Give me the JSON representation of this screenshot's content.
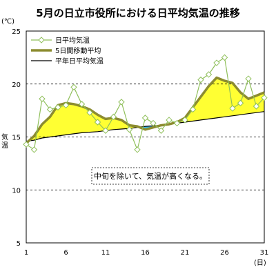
{
  "chart_data": {
    "type": "line",
    "title": "5月の日立市役所における日平均気温の推移",
    "y_unit": "(℃)",
    "ylabel": "気温",
    "x_unit": "(日)",
    "ylim": [
      5,
      25
    ],
    "yticks": [
      5,
      10,
      15,
      20,
      25
    ],
    "xlim": [
      1,
      31
    ],
    "xticks": [
      1,
      6,
      11,
      16,
      21,
      26,
      31
    ],
    "grid": "horizontal dashed at 10, 15, 20",
    "legend_position": "top-left",
    "x": [
      1,
      2,
      3,
      4,
      5,
      6,
      7,
      8,
      9,
      10,
      11,
      12,
      13,
      14,
      15,
      16,
      17,
      18,
      19,
      20,
      21,
      22,
      23,
      24,
      25,
      26,
      27,
      28,
      29,
      30,
      31
    ],
    "series": [
      {
        "name": "日平均気温",
        "style": "line-with-diamond-markers",
        "color": "#8fbf5a",
        "values": [
          14.3,
          13.8,
          18.6,
          17.6,
          17.8,
          18.0,
          19.7,
          18.1,
          17.3,
          16.4,
          15.6,
          16.9,
          18.3,
          15.7,
          13.8,
          16.8,
          16.3,
          15.6,
          16.6,
          16.3,
          16.6,
          17.6,
          20.4,
          20.9,
          22.0,
          22.5,
          17.7,
          18.2,
          20.5,
          17.9,
          18.7
        ]
      },
      {
        "name": "5日間移動平均",
        "style": "thick-line",
        "color": "#8c8c30",
        "values": [
          14.4,
          15.1,
          16.2,
          16.9,
          18.0,
          18.2,
          18.1,
          17.9,
          17.6,
          17.1,
          16.7,
          16.8,
          16.6,
          16.1,
          16.0,
          15.7,
          15.9,
          16.1,
          16.2,
          16.4,
          16.8,
          17.8,
          18.8,
          19.8,
          20.6,
          20.3,
          20.1,
          19.2,
          18.6,
          18.9,
          19.2
        ]
      },
      {
        "name": "平年日平均気温",
        "style": "thin-line",
        "color": "#000000",
        "values": [
          14.6,
          14.7,
          14.9,
          15.0,
          15.1,
          15.2,
          15.3,
          15.4,
          15.45,
          15.5,
          15.6,
          15.7,
          15.75,
          15.8,
          15.9,
          16.0,
          16.05,
          16.1,
          16.2,
          16.3,
          16.4,
          16.5,
          16.6,
          16.7,
          16.8,
          16.9,
          17.0,
          17.1,
          17.2,
          17.3,
          17.4
        ]
      }
    ],
    "fill_colors": {
      "above_normal": "#ffff33",
      "below_normal": "#33b5e5"
    },
    "annotation": "中旬を除いて、気温が高くなる。"
  }
}
